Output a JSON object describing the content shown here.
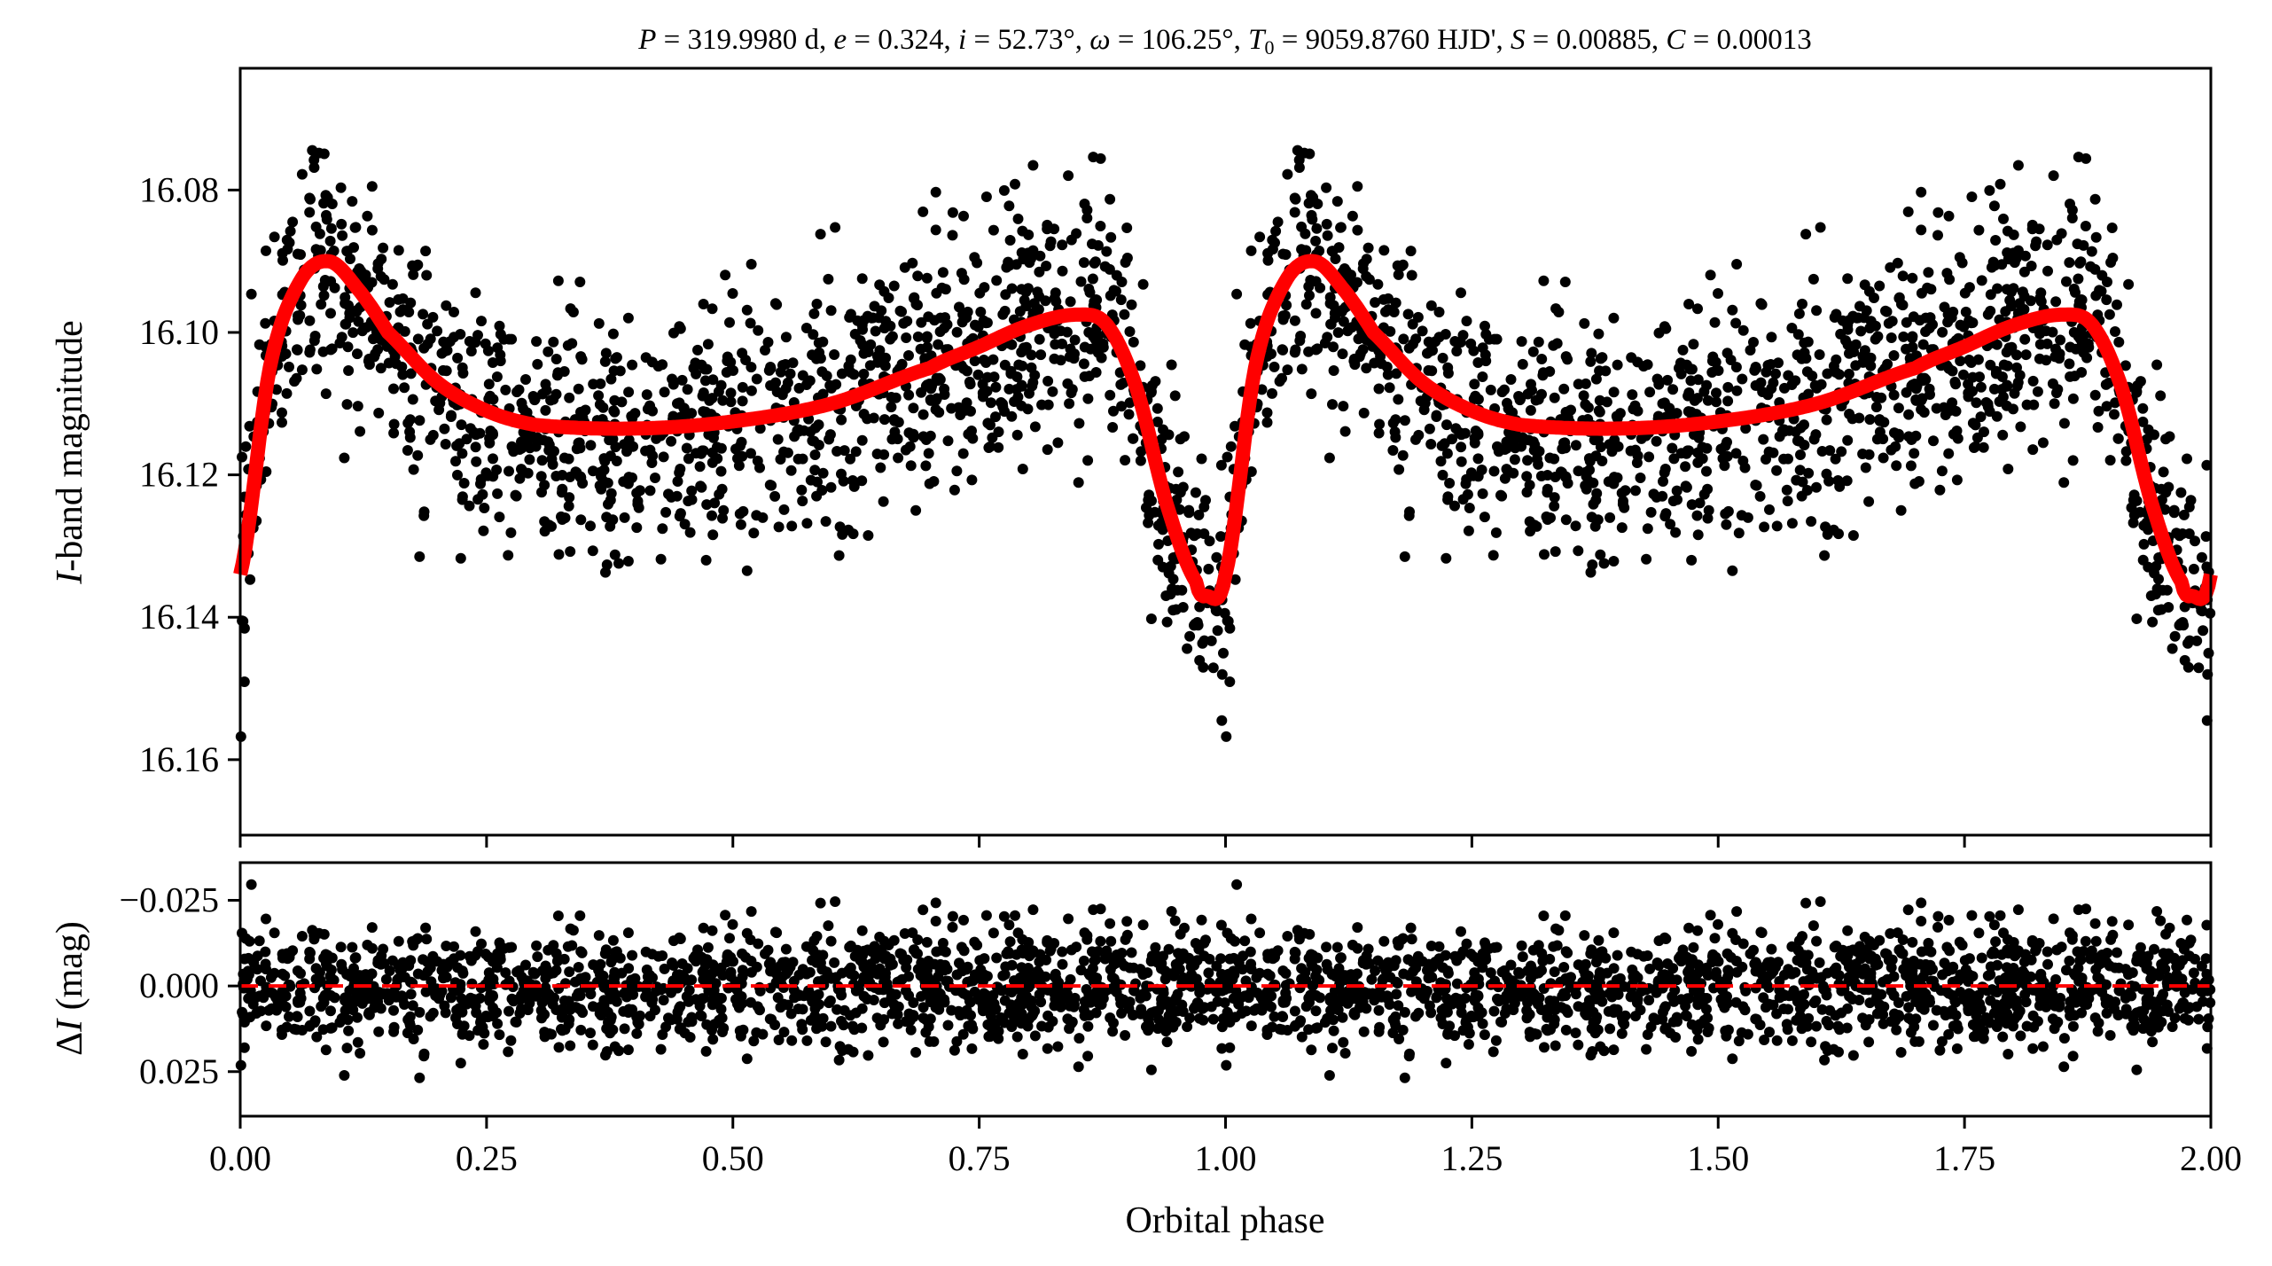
{
  "chart_data": [
    {
      "type": "scatter",
      "panel": "light-curve",
      "title": "P = 319.9980 d, e = 0.324, i = 52.73°, ω = 106.25°, T0 = 9059.8760 HJD', S = 0.00885, C = 0.00013",
      "xlabel": "Orbital phase",
      "ylabel": "I-band magnitude",
      "xlim": [
        0,
        2
      ],
      "ylim": [
        16.1706,
        16.0629
      ],
      "y_inverted": true,
      "xticks": [
        "0.00",
        "0.25",
        "0.50",
        "0.75",
        "1.00",
        "1.25",
        "1.50",
        "1.75",
        "2.00"
      ],
      "yticks": [
        "16.08",
        "16.10",
        "16.12",
        "16.14",
        "16.16"
      ],
      "ytick_values": [
        16.08,
        16.1,
        16.12,
        16.14,
        16.16
      ],
      "series": [
        {
          "name": "observations",
          "kind": "scatter",
          "color": "#000000",
          "n_points_per_cycle": 1400,
          "scatter_sigma_mag": 0.0085
        },
        {
          "name": "model",
          "kind": "line",
          "color": "#ff0000",
          "phase": [
            0.0,
            0.03,
            0.06,
            0.09,
            0.12,
            0.15,
            0.2,
            0.25,
            0.3,
            0.4,
            0.5,
            0.6,
            0.7,
            0.75,
            0.8,
            0.85,
            0.88,
            0.91,
            0.94,
            0.97,
            0.98,
            1.0
          ],
          "mag": [
            16.134,
            16.105,
            16.093,
            16.09,
            16.094,
            16.1,
            16.107,
            16.111,
            16.113,
            16.1135,
            16.1125,
            16.11,
            16.105,
            16.102,
            16.099,
            16.0975,
            16.099,
            16.108,
            16.124,
            16.135,
            16.137,
            16.134
          ]
        }
      ]
    },
    {
      "type": "scatter",
      "panel": "residuals",
      "xlabel": "Orbital phase",
      "ylabel_prefix": "Δ",
      "ylabel_var": "I",
      "ylabel_suffix": " (mag)",
      "xlim": [
        0,
        2
      ],
      "ylim": [
        0.038,
        -0.036
      ],
      "y_inverted": true,
      "yticks": [
        "−0.025",
        "0.000",
        "0.025"
      ],
      "ytick_values": [
        -0.025,
        0,
        0.025
      ],
      "series": [
        {
          "name": "residuals",
          "kind": "scatter",
          "color": "#000000"
        },
        {
          "name": "zero-line",
          "kind": "dashed-line",
          "color": "#ff0000",
          "y": 0
        }
      ]
    }
  ],
  "title_parts": {
    "P": "P",
    "P_val": " = 319.9980 d, ",
    "e": "e",
    "e_val": " = 0.324, ",
    "i": "i",
    "i_val": " = 52.73°, ",
    "w": "ω",
    "w_val": " = 106.25°, ",
    "T": "T",
    "T_sub": "0",
    "T_val": " = 9059.8760 HJD', ",
    "S": "S",
    "S_val": " = 0.00885, ",
    "C": "C",
    "C_val": " = 0.00013"
  },
  "ylabel_top": {
    "var": "I",
    "rest": "-band magnitude"
  }
}
